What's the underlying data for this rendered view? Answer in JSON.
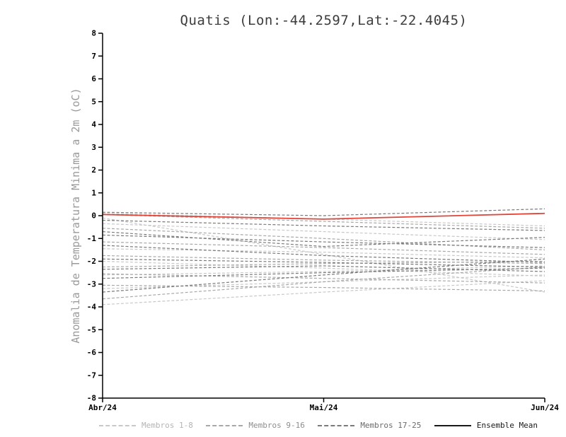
{
  "title": "Quatis (Lon:-44.2597,Lat:-22.4045)",
  "y_axis_label": "Anomalia de Temperatura Minima a 2m (oC)",
  "legend": [
    {
      "label": "Membros 1-8",
      "color": "#c8c8c8",
      "text_color": "#b4b4b4",
      "style": "dashed"
    },
    {
      "label": "Membros 9-16",
      "color": "#a8a8a8",
      "text_color": "#8e8e8e",
      "style": "dashed"
    },
    {
      "label": "Membros 17-25",
      "color": "#7a7a7a",
      "text_color": "#6a6a6a",
      "style": "dashed"
    },
    {
      "label": "Ensemble Mean",
      "color": "#1a1a1a",
      "text_color": "#1a1a1a",
      "style": "solid"
    }
  ],
  "chart_data": {
    "type": "line",
    "x": [
      "Abr/24",
      "Mai/24",
      "Jun/24"
    ],
    "ylim": [
      -8,
      8
    ],
    "ytick_step": 1,
    "grid": false,
    "legend_position": "bottom",
    "axis_color": "#000000",
    "mean_color": "#e0453a",
    "groups": [
      {
        "name": "Membros 1-8",
        "color": "#c8c8c8",
        "members": [
          [
            0.1,
            -0.15,
            -0.45
          ],
          [
            -0.35,
            -0.7,
            -1.05
          ],
          [
            -1.45,
            -1.6,
            -1.85
          ],
          [
            -2.0,
            -2.3,
            -2.65
          ],
          [
            -2.6,
            -2.45,
            -2.2
          ],
          [
            -3.2,
            -2.9,
            -2.6
          ],
          [
            -3.9,
            -3.35,
            -2.85
          ],
          [
            -0.1,
            -1.7,
            -3.35
          ]
        ]
      },
      {
        "name": "Membros 9-16",
        "color": "#a8a8a8",
        "members": [
          [
            0.05,
            -0.25,
            -0.55
          ],
          [
            -0.55,
            -1.0,
            -1.5
          ],
          [
            -1.15,
            -1.4,
            -1.7
          ],
          [
            -1.75,
            -1.95,
            -2.1
          ],
          [
            -2.25,
            -2.1,
            -2.0
          ],
          [
            -2.55,
            -2.75,
            -2.95
          ],
          [
            -3.05,
            -3.15,
            -3.3
          ],
          [
            -3.65,
            -2.9,
            -2.25
          ]
        ]
      },
      {
        "name": "Membros 17-25",
        "color": "#7a7a7a",
        "members": [
          [
            0.15,
            0.0,
            0.3
          ],
          [
            -0.2,
            -0.45,
            -0.65
          ],
          [
            -0.85,
            -1.15,
            -1.4
          ],
          [
            -1.3,
            -1.75,
            -2.05
          ],
          [
            -1.9,
            -2.05,
            -2.25
          ],
          [
            -2.35,
            -2.2,
            -2.45
          ],
          [
            -2.75,
            -2.5,
            -2.3
          ],
          [
            -3.35,
            -2.6,
            -1.9
          ],
          [
            -0.7,
            -1.35,
            -0.95
          ]
        ]
      }
    ],
    "ensemble_mean": {
      "name": "Ensemble Mean",
      "values": [
        0.05,
        -0.15,
        0.1
      ]
    },
    "title": "Quatis (Lon:-44.2597,Lat:-22.4045)",
    "ylabel": "Anomalia de Temperatura Minima a 2m (oC)",
    "xlabel": ""
  }
}
